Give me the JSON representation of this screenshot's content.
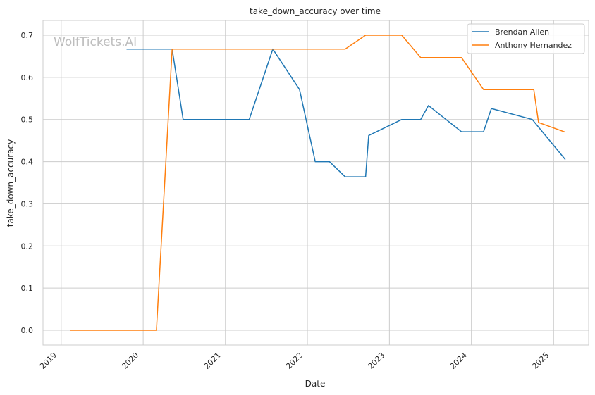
{
  "chart_data": {
    "type": "line",
    "title": "take_down_accuracy over time",
    "xlabel": "Date",
    "ylabel": "take_down_accuracy",
    "watermark": "WolfTickets.AI",
    "xlim": [
      "2018-10-12",
      "2025-06-06"
    ],
    "ylim": [
      -0.035,
      0.735
    ],
    "x_ticks": [
      "2019",
      "2020",
      "2021",
      "2022",
      "2023",
      "2024",
      "2025"
    ],
    "y_ticks": [
      "0.0",
      "0.1",
      "0.2",
      "0.3",
      "0.4",
      "0.5",
      "0.6",
      "0.7"
    ],
    "grid": true,
    "legend_position": "upper right",
    "series": [
      {
        "name": "Brendan Allen",
        "color": "#1f77b4",
        "points": [
          {
            "x": "2019-10-19",
            "y": 0.667
          },
          {
            "x": "2020-05-09",
            "y": 0.667
          },
          {
            "x": "2020-06-27",
            "y": 0.5
          },
          {
            "x": "2021-04-17",
            "y": 0.5
          },
          {
            "x": "2021-07-31",
            "y": 0.667
          },
          {
            "x": "2021-11-27",
            "y": 0.571
          },
          {
            "x": "2022-02-05",
            "y": 0.4
          },
          {
            "x": "2022-04-09",
            "y": 0.4
          },
          {
            "x": "2022-06-18",
            "y": 0.364
          },
          {
            "x": "2022-09-17",
            "y": 0.364
          },
          {
            "x": "2022-10-01",
            "y": 0.462
          },
          {
            "x": "2023-02-25",
            "y": 0.5
          },
          {
            "x": "2023-05-20",
            "y": 0.5
          },
          {
            "x": "2023-06-24",
            "y": 0.533
          },
          {
            "x": "2023-11-18",
            "y": 0.471
          },
          {
            "x": "2024-02-24",
            "y": 0.471
          },
          {
            "x": "2024-03-30",
            "y": 0.526
          },
          {
            "x": "2024-09-28",
            "y": 0.5
          },
          {
            "x": "2025-02-22",
            "y": 0.405
          }
        ]
      },
      {
        "name": "Anthony Hernandez",
        "color": "#ff7f0e",
        "points": [
          {
            "x": "2019-02-09",
            "y": 0.0
          },
          {
            "x": "2020-02-29",
            "y": 0.0
          },
          {
            "x": "2020-05-09",
            "y": 0.667
          },
          {
            "x": "2022-06-18",
            "y": 0.667
          },
          {
            "x": "2022-09-17",
            "y": 0.7
          },
          {
            "x": "2023-02-25",
            "y": 0.7
          },
          {
            "x": "2023-05-20",
            "y": 0.647
          },
          {
            "x": "2023-11-18",
            "y": 0.647
          },
          {
            "x": "2024-02-24",
            "y": 0.571
          },
          {
            "x": "2024-10-05",
            "y": 0.571
          },
          {
            "x": "2024-10-26",
            "y": 0.493
          },
          {
            "x": "2025-02-22",
            "y": 0.47
          }
        ]
      }
    ]
  }
}
